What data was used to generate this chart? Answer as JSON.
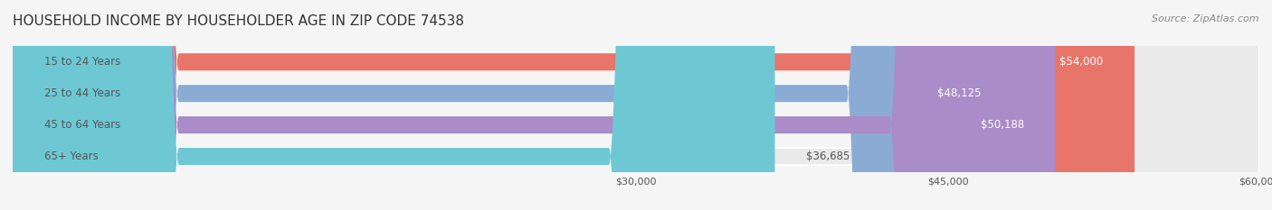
{
  "title": "HOUSEHOLD INCOME BY HOUSEHOLDER AGE IN ZIP CODE 74538",
  "source": "Source: ZipAtlas.com",
  "categories": [
    "15 to 24 Years",
    "25 to 44 Years",
    "45 to 64 Years",
    "65+ Years"
  ],
  "values": [
    54000,
    48125,
    50188,
    36685
  ],
  "value_labels": [
    "$54,000",
    "$48,125",
    "$50,188",
    "$36,685"
  ],
  "bar_colors": [
    "#E8756A",
    "#8AACD4",
    "#A98CC8",
    "#6EC8D4"
  ],
  "bar_bg_color": "#EAEAEA",
  "xmin": 0,
  "xmax": 60000,
  "xticks": [
    30000,
    45000,
    60000
  ],
  "xtick_labels": [
    "$30,000",
    "$45,000",
    "$60,000"
  ],
  "background_color": "#F5F5F5",
  "title_fontsize": 11,
  "source_fontsize": 8,
  "label_fontsize": 8.5,
  "value_fontsize": 8.5,
  "bar_height": 0.55,
  "label_inside_color": "#555555",
  "value_inside_color": "#ffffff",
  "value_outside_color": "#555555"
}
